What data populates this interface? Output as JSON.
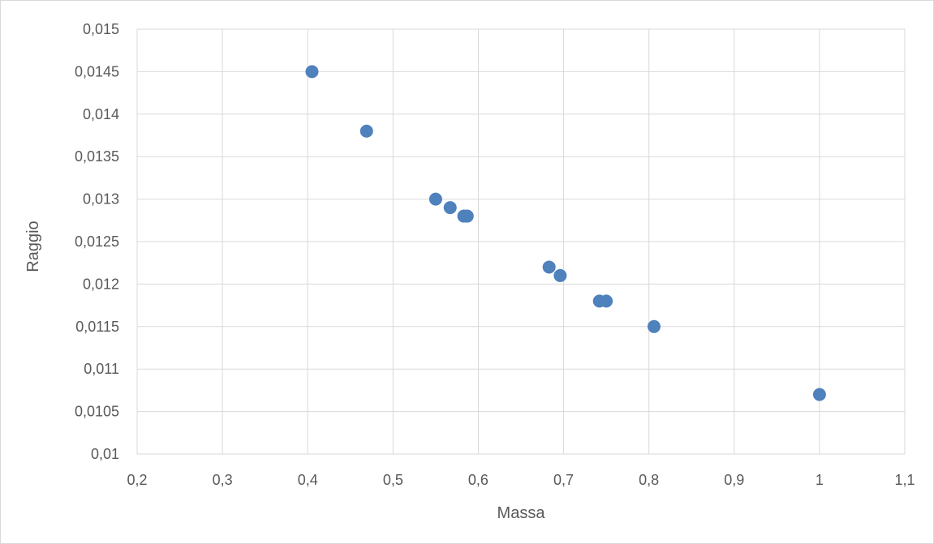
{
  "chart_data": {
    "type": "scatter",
    "title": "",
    "xlabel": "Massa",
    "ylabel": "Raggio",
    "xlim": [
      0.2,
      1.1
    ],
    "ylim": [
      0.01,
      0.015
    ],
    "x_ticks": [
      "0,2",
      "0,3",
      "0,4",
      "0,5",
      "0,6",
      "0,7",
      "0,8",
      "0,9",
      "1",
      "1,1"
    ],
    "y_ticks": [
      "0,01",
      "0,0105",
      "0,011",
      "0,0115",
      "0,012",
      "0,0125",
      "0,013",
      "0,0135",
      "0,014",
      "0,0145",
      "0,015"
    ],
    "grid": true,
    "legend": "none",
    "marker_color": "#4f81bd",
    "series": [
      {
        "x": [
          0.405,
          0.469,
          0.55,
          0.567,
          0.583,
          0.587,
          0.683,
          0.696,
          0.742,
          0.75,
          0.806,
          1.0
        ],
        "y": [
          0.0145,
          0.0138,
          0.013,
          0.0129,
          0.0128,
          0.0128,
          0.0122,
          0.0121,
          0.0118,
          0.0118,
          0.0115,
          0.0107
        ]
      }
    ]
  }
}
